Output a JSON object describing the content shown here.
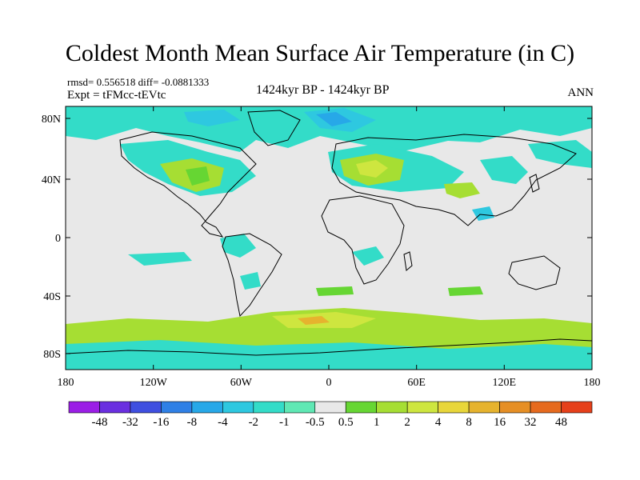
{
  "title": "Coldest Month Mean Surface Air Temperature (in C)",
  "stats": "rmsd= 0.556518  diff= -0.0881333",
  "experiment": "Expt = tFMcc-tEVtc",
  "period": "1424kyr BP - 1424kyr BP",
  "season": "ANN",
  "lat_ticks": [
    "80N",
    "40N",
    "0",
    "40S",
    "80S"
  ],
  "lon_ticks": [
    "180",
    "120W",
    "60W",
    "0",
    "60E",
    "120E",
    "180"
  ],
  "colorbar": {
    "colors": [
      "#9b1ee6",
      "#6a2fe0",
      "#3f4fe0",
      "#2f80e6",
      "#27a8e8",
      "#2ec8e0",
      "#33dcc8",
      "#5fe8b4",
      "#e8e8e8",
      "#66d633",
      "#a6de33",
      "#cee63f",
      "#e8d63a",
      "#e6b32e",
      "#e68f25",
      "#e66a1e",
      "#e6401a"
    ],
    "labels": [
      "-48",
      "-32",
      "-16",
      "-8",
      "-4",
      "-2",
      "-1",
      "-0.5",
      "0.5",
      "1",
      "2",
      "4",
      "8",
      "16",
      "32",
      "48"
    ]
  },
  "fill_colors": {
    "background": "#e8e8e8",
    "cyan": "#33dcc8",
    "teal": "#2ec8e0",
    "blue": "#27a8e8",
    "green_light": "#66d633",
    "green": "#a6de33",
    "yellow": "#cee63f",
    "orange": "#e6b32e"
  }
}
